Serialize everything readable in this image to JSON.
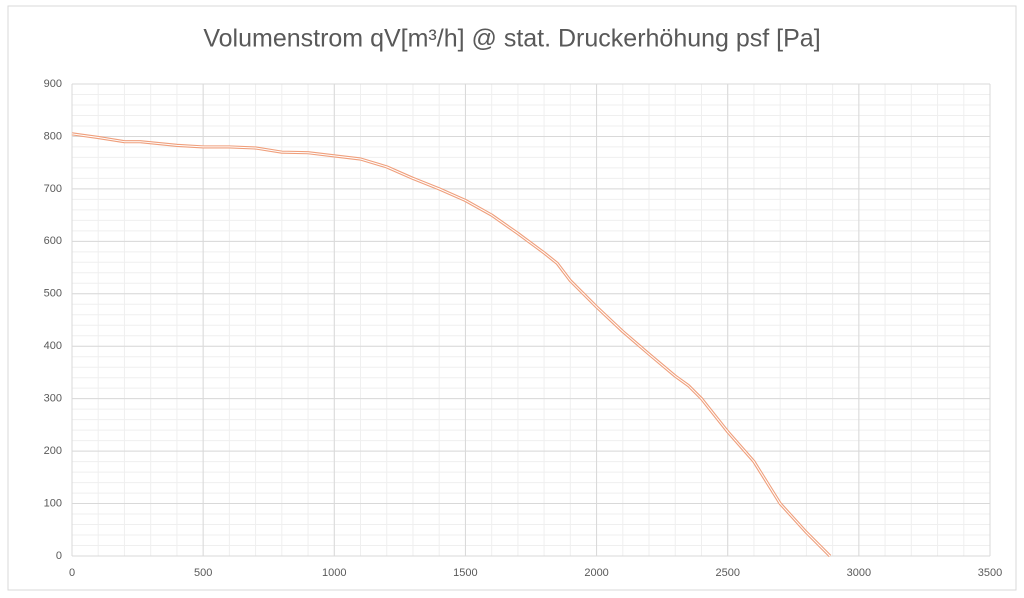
{
  "chart_data": {
    "type": "line",
    "title": "Volumenstrom qV[m³/h] @ stat. Druckerhöhung psf [Pa]",
    "x": [
      0,
      100,
      200,
      260,
      400,
      500,
      600,
      700,
      800,
      900,
      1000,
      1100,
      1200,
      1300,
      1400,
      1500,
      1600,
      1700,
      1800,
      1850,
      1900,
      2000,
      2100,
      2200,
      2300,
      2350,
      2400,
      2500,
      2600,
      2700,
      2800,
      2890
    ],
    "series": [
      {
        "color": "#ef9f7c",
        "values": [
          805,
          798,
          790,
          790,
          783,
          780,
          780,
          778,
          770,
          769,
          763,
          757,
          742,
          720,
          700,
          678,
          650,
          615,
          578,
          558,
          525,
          475,
          428,
          385,
          343,
          325,
          300,
          237,
          180,
          100,
          45,
          0
        ]
      }
    ],
    "xlim": [
      0,
      3500
    ],
    "xticks": [
      0,
      500,
      1000,
      1500,
      2000,
      2500,
      3000,
      3500
    ],
    "ylim": [
      0,
      900
    ],
    "yticks": [
      0,
      100,
      200,
      300,
      400,
      500,
      600,
      700,
      800,
      900
    ],
    "grid": true,
    "xminor": 100,
    "yminor": 20
  }
}
